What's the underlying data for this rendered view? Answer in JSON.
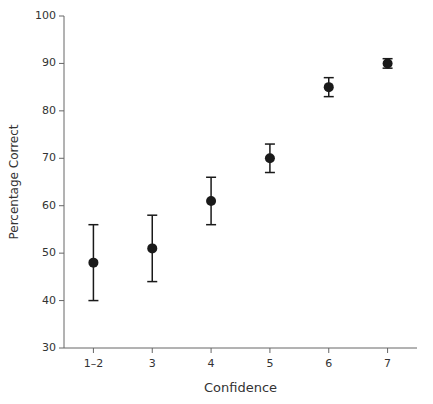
{
  "chart_data": {
    "type": "scatter",
    "xlabel": "Confidence",
    "ylabel": "Percentage Correct",
    "categories": [
      "1–2",
      "3",
      "4",
      "5",
      "6",
      "7"
    ],
    "values": [
      48,
      51,
      61,
      70,
      85,
      90
    ],
    "errors": [
      8,
      7,
      5,
      3,
      2,
      1
    ],
    "color": "#1a1a1a",
    "marker": "circle",
    "ylim": [
      30,
      100
    ],
    "yticks": [
      30,
      40,
      50,
      60,
      70,
      80,
      90,
      100
    ],
    "grid": false
  }
}
